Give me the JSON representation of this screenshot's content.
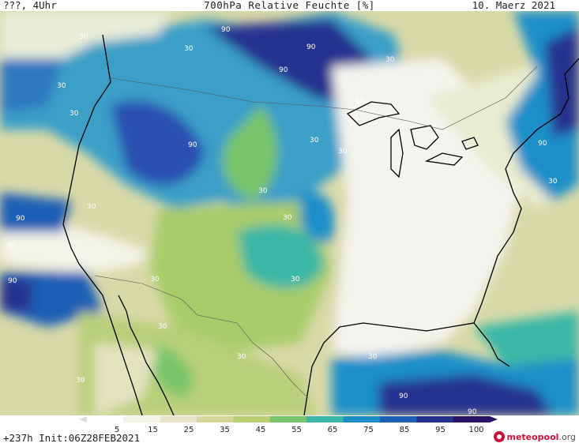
{
  "header": {
    "left": "???, 4Uhr",
    "title": "700hPa Relative Feuchte [%]",
    "date": "10. Maerz 2021"
  },
  "footer": {
    "run_info": "+237h Init:06Z28FEB2021",
    "logo_name": "meteopool",
    "logo_tld": ".org"
  },
  "legend": {
    "ticks": [
      "5",
      "15",
      "25",
      "35",
      "45",
      "55",
      "65",
      "75",
      "85",
      "95",
      "100"
    ],
    "colors": [
      "#ffffff",
      "#f3f3ea",
      "#e8e3c8",
      "#d7d59a",
      "#b7cf6e",
      "#79c46b",
      "#3ab7a6",
      "#1e8fc9",
      "#1f5fb6",
      "#27318f",
      "#2a1267"
    ]
  },
  "map": {
    "contour_labels": [
      "30",
      "90",
      "30",
      "30",
      "90",
      "90",
      "30",
      "90",
      "30",
      "90",
      "30",
      "30",
      "90",
      "30",
      "30",
      "30",
      "90",
      "30",
      "90",
      "30",
      "30",
      "30",
      "30",
      "30",
      "90",
      "90",
      "30",
      "30"
    ],
    "colors": {
      "land_border": "#000000",
      "state_border": "#555555"
    }
  }
}
